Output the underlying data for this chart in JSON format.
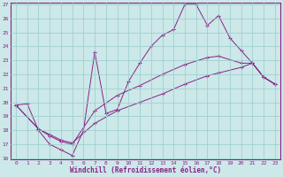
{
  "xlabel": "Windchill (Refroidissement éolien,°C)",
  "ylabel": "",
  "background_color": "#cce8e8",
  "line_color": "#882288",
  "grid_color": "#99cccc",
  "xlim": [
    -0.5,
    23.5
  ],
  "ylim": [
    16,
    27
  ],
  "xticks": [
    0,
    1,
    2,
    3,
    4,
    5,
    6,
    7,
    8,
    9,
    10,
    11,
    12,
    13,
    14,
    15,
    16,
    17,
    18,
    19,
    20,
    21,
    22,
    23
  ],
  "yticks": [
    16,
    17,
    18,
    19,
    20,
    21,
    22,
    23,
    24,
    25,
    26,
    27
  ],
  "line1_x": [
    0,
    1,
    2,
    3,
    4,
    5,
    6,
    7,
    8,
    9,
    10,
    11,
    12,
    13,
    14,
    15,
    16,
    17,
    18,
    19,
    20,
    21,
    22,
    23
  ],
  "line1_y": [
    19.8,
    19.9,
    18.0,
    17.0,
    16.6,
    16.2,
    18.0,
    23.6,
    19.2,
    19.5,
    21.5,
    22.8,
    24.0,
    24.8,
    25.2,
    27.0,
    27.0,
    25.5,
    26.2,
    24.6,
    23.7,
    22.8,
    21.8,
    21.3
  ],
  "line2_x": [
    0,
    2,
    3,
    4,
    5,
    7,
    9,
    11,
    13,
    15,
    17,
    18,
    20,
    21,
    22,
    23
  ],
  "line2_y": [
    19.8,
    18.1,
    17.6,
    17.2,
    17.0,
    19.4,
    20.5,
    21.2,
    22.0,
    22.7,
    23.2,
    23.3,
    22.8,
    22.8,
    21.8,
    21.3
  ],
  "line3_x": [
    0,
    2,
    3,
    4,
    5,
    7,
    9,
    11,
    13,
    15,
    17,
    18,
    20,
    21,
    22,
    23
  ],
  "line3_y": [
    19.8,
    18.1,
    17.7,
    17.3,
    17.1,
    18.5,
    19.4,
    20.0,
    20.6,
    21.3,
    21.9,
    22.1,
    22.5,
    22.8,
    21.8,
    21.3
  ]
}
